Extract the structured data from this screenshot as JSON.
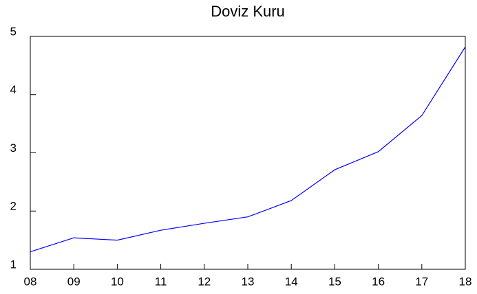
{
  "chart_data": {
    "type": "line",
    "title": "Doviz Kuru",
    "categories": [
      "08",
      "09",
      "10",
      "11",
      "12",
      "13",
      "14",
      "15",
      "16",
      "17",
      "18"
    ],
    "series": [
      {
        "color": "#0000ff",
        "values": [
          1.3,
          1.54,
          1.5,
          1.67,
          1.79,
          1.9,
          2.18,
          2.71,
          3.02,
          3.64,
          4.82
        ]
      }
    ],
    "ylim": [
      1,
      5
    ],
    "yticks": [
      1,
      2,
      3,
      4,
      5
    ]
  }
}
